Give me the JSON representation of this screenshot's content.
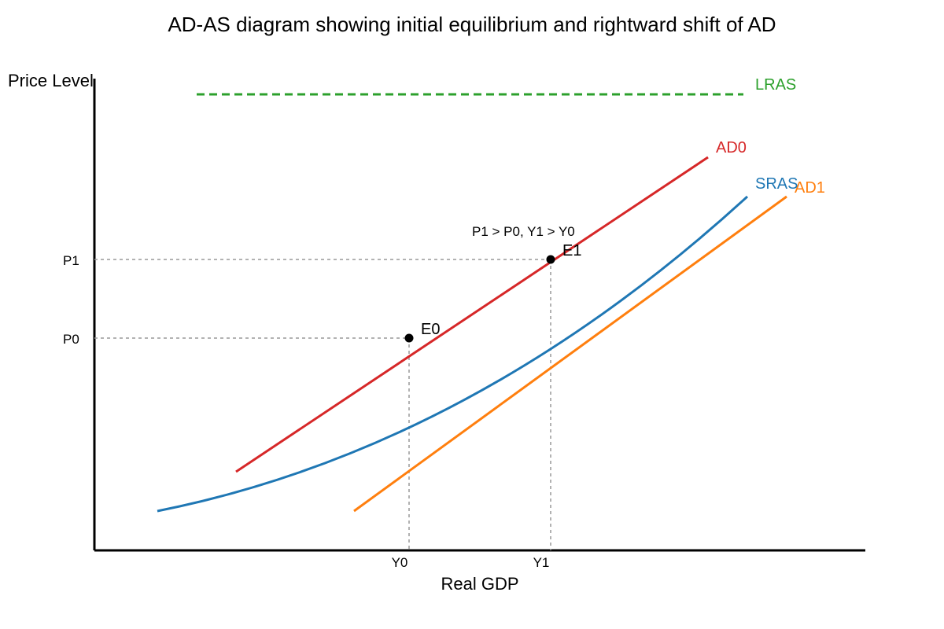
{
  "diagram": {
    "title": "AD-AS diagram showing initial equilibrium and rightward shift of AD",
    "y_axis_label": "Price Level",
    "x_axis_label": "Real GDP",
    "ticks": {
      "p0": "P0",
      "p1": "P1",
      "y0": "Y0",
      "y1": "Y1"
    },
    "curves": {
      "lras": {
        "label": "LRAS",
        "color": "#2ca02c",
        "style": "dashed"
      },
      "ad0": {
        "label": "AD0",
        "color": "#d62728"
      },
      "sras": {
        "label": "SRAS",
        "color": "#1f77b4"
      },
      "ad1": {
        "label": "AD1",
        "color": "#ff7f0e"
      }
    },
    "points": {
      "e0": "E0",
      "e1": "E1"
    },
    "annotation": "P1 > P0, Y1 > Y0"
  }
}
